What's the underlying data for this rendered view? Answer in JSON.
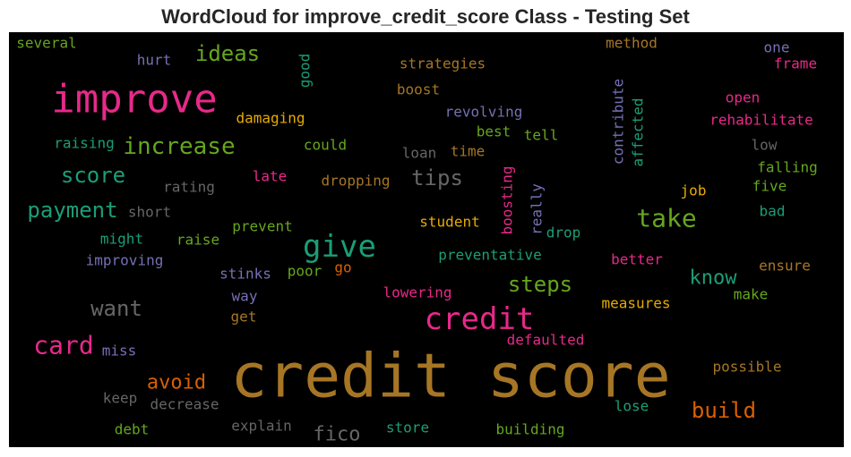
{
  "chart_data": {
    "type": "wordcloud",
    "title": "WordCloud for improve_credit_score Class - Testing Set",
    "background": "#000000",
    "palette": {
      "gold": "#a67625",
      "pink": "#e7298a",
      "green": "#1b9e77",
      "lime": "#66a61e",
      "orange": "#d95f02",
      "purple": "#7570b3",
      "gray": "#666666",
      "yellow": "#e6ab02"
    },
    "words": [
      {
        "text": "credit score",
        "color": "gold"
      },
      {
        "text": "improve",
        "color": "pink"
      },
      {
        "text": "give",
        "color": "green"
      },
      {
        "text": "credit",
        "color": "pink"
      },
      {
        "text": "take",
        "color": "lime"
      },
      {
        "text": "card",
        "color": "pink"
      },
      {
        "text": "increase",
        "color": "lime"
      },
      {
        "text": "build",
        "color": "orange"
      },
      {
        "text": "payment",
        "color": "green"
      },
      {
        "text": "want",
        "color": "gray"
      },
      {
        "text": "ideas",
        "color": "lime"
      },
      {
        "text": "score",
        "color": "green"
      },
      {
        "text": "tips",
        "color": "gray"
      },
      {
        "text": "steps",
        "color": "lime"
      },
      {
        "text": "know",
        "color": "green"
      },
      {
        "text": "avoid",
        "color": "orange"
      },
      {
        "text": "fico",
        "color": "gray"
      },
      {
        "text": "damaging",
        "color": "yellow"
      },
      {
        "text": "strategies",
        "color": "gold"
      },
      {
        "text": "boost",
        "color": "gold"
      },
      {
        "text": "revolving",
        "color": "purple"
      },
      {
        "text": "method",
        "color": "gold"
      },
      {
        "text": "several",
        "color": "lime"
      },
      {
        "text": "hurt",
        "color": "purple"
      },
      {
        "text": "good",
        "color": "green"
      },
      {
        "text": "one",
        "color": "purple"
      },
      {
        "text": "frame",
        "color": "pink"
      },
      {
        "text": "open",
        "color": "pink"
      },
      {
        "text": "rehabilitate",
        "color": "pink"
      },
      {
        "text": "contribute",
        "color": "purple"
      },
      {
        "text": "affected",
        "color": "green"
      },
      {
        "text": "raising",
        "color": "green"
      },
      {
        "text": "could",
        "color": "lime"
      },
      {
        "text": "best",
        "color": "lime"
      },
      {
        "text": "tell",
        "color": "lime"
      },
      {
        "text": "loan",
        "color": "gray"
      },
      {
        "text": "time",
        "color": "gold"
      },
      {
        "text": "low",
        "color": "gray"
      },
      {
        "text": "falling",
        "color": "lime"
      },
      {
        "text": "late",
        "color": "pink"
      },
      {
        "text": "rating",
        "color": "gray"
      },
      {
        "text": "dropping",
        "color": "gold"
      },
      {
        "text": "boosting",
        "color": "pink"
      },
      {
        "text": "really",
        "color": "purple"
      },
      {
        "text": "job",
        "color": "yellow"
      },
      {
        "text": "five",
        "color": "lime"
      },
      {
        "text": "short",
        "color": "gray"
      },
      {
        "text": "student",
        "color": "yellow"
      },
      {
        "text": "bad",
        "color": "green"
      },
      {
        "text": "prevent",
        "color": "lime"
      },
      {
        "text": "drop",
        "color": "green"
      },
      {
        "text": "might",
        "color": "green"
      },
      {
        "text": "raise",
        "color": "lime"
      },
      {
        "text": "improving",
        "color": "purple"
      },
      {
        "text": "preventative",
        "color": "green"
      },
      {
        "text": "better",
        "color": "pink"
      },
      {
        "text": "ensure",
        "color": "gold"
      },
      {
        "text": "stinks",
        "color": "purple"
      },
      {
        "text": "poor",
        "color": "lime"
      },
      {
        "text": "go",
        "color": "orange"
      },
      {
        "text": "make",
        "color": "lime"
      },
      {
        "text": "way",
        "color": "purple"
      },
      {
        "text": "lowering",
        "color": "pink"
      },
      {
        "text": "measures",
        "color": "yellow"
      },
      {
        "text": "get",
        "color": "gold"
      },
      {
        "text": "miss",
        "color": "purple"
      },
      {
        "text": "defaulted",
        "color": "pink"
      },
      {
        "text": "possible",
        "color": "gold"
      },
      {
        "text": "keep",
        "color": "gray"
      },
      {
        "text": "decrease",
        "color": "gray"
      },
      {
        "text": "lose",
        "color": "green"
      },
      {
        "text": "debt",
        "color": "lime"
      },
      {
        "text": "explain",
        "color": "gray"
      },
      {
        "text": "store",
        "color": "green"
      },
      {
        "text": "building",
        "color": "lime"
      }
    ]
  }
}
